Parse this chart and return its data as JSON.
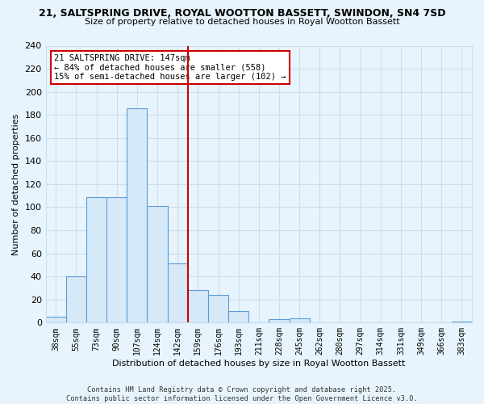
{
  "title1": "21, SALTSPRING DRIVE, ROYAL WOOTTON BASSETT, SWINDON, SN4 7SD",
  "title2": "Size of property relative to detached houses in Royal Wootton Bassett",
  "xlabel": "Distribution of detached houses by size in Royal Wootton Bassett",
  "ylabel": "Number of detached properties",
  "bin_labels": [
    "38sqm",
    "55sqm",
    "73sqm",
    "90sqm",
    "107sqm",
    "124sqm",
    "142sqm",
    "159sqm",
    "176sqm",
    "193sqm",
    "211sqm",
    "228sqm",
    "245sqm",
    "262sqm",
    "280sqm",
    "297sqm",
    "314sqm",
    "331sqm",
    "349sqm",
    "366sqm",
    "383sqm"
  ],
  "bar_heights": [
    5,
    40,
    109,
    109,
    186,
    101,
    51,
    28,
    24,
    10,
    0,
    3,
    4,
    0,
    0,
    0,
    0,
    0,
    0,
    0,
    1
  ],
  "bar_color": "#d6e9f8",
  "bar_edge_color": "#5b9bd5",
  "vline_x_pos": 6.5,
  "vline_color": "#cc0000",
  "annotation_line1": "21 SALTSPRING DRIVE: 147sqm",
  "annotation_line2": "← 84% of detached houses are smaller (558)",
  "annotation_line3": "15% of semi-detached houses are larger (102) →",
  "annotation_box_color": "#ffffff",
  "annotation_border_color": "#cc0000",
  "ylim": [
    0,
    240
  ],
  "yticks": [
    0,
    20,
    40,
    60,
    80,
    100,
    120,
    140,
    160,
    180,
    200,
    220,
    240
  ],
  "footer_text": "Contains HM Land Registry data © Crown copyright and database right 2025.\nContains public sector information licensed under the Open Government Licence v3.0.",
  "grid_color": "#c8dff0",
  "background_color": "#e8f4fd"
}
